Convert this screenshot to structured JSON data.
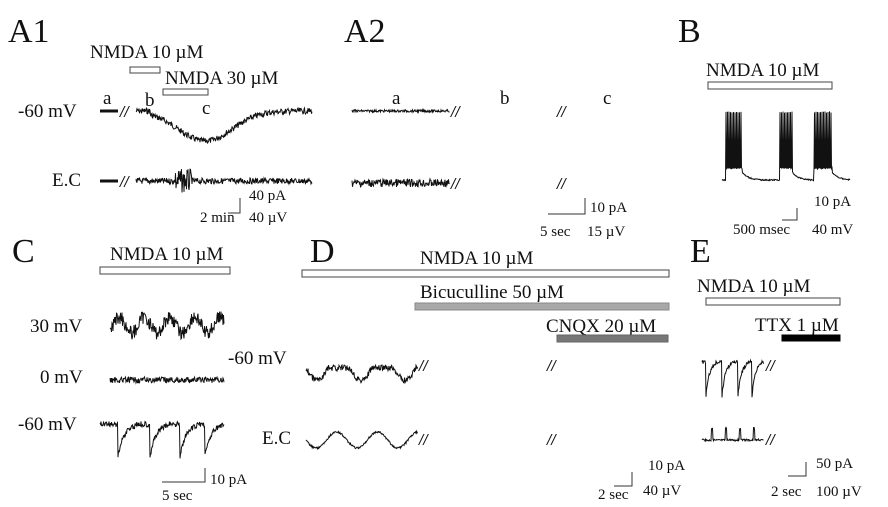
{
  "panels": {
    "A1": {
      "label": "A1",
      "bar1": "NMDA 10 µM",
      "bar2": "NMDA 30 µM",
      "hold": "-60 mV",
      "marks": [
        "a",
        "b",
        "c"
      ],
      "ec": "E.C",
      "scale_amp1": "40 pA",
      "scale_amp2": "40 µV",
      "scale_time": "2 min"
    },
    "A2": {
      "label": "A2",
      "marks": [
        "a",
        "b",
        "c"
      ],
      "scale_amp1": "10 pA",
      "scale_amp2": "15 µV",
      "scale_time": "5 sec"
    },
    "B": {
      "label": "B",
      "bar": "NMDA 10 µM",
      "scale_amp1": "10 pA",
      "scale_amp2": "40 mV",
      "scale_time": "500 msec"
    },
    "C": {
      "label": "C",
      "bar": "NMDA 10 µM",
      "v1": "30 mV",
      "v2": "0 mV",
      "v3": "-60 mV",
      "scale_amp": "10 pA",
      "scale_time": "5 sec"
    },
    "D": {
      "label": "D",
      "bar1": "NMDA 10 µM",
      "bar2": "Bicuculline 50 µM",
      "bar3": "CNQX 20 µM",
      "hold": "-60 mV",
      "ec": "E.C",
      "scale_amp1": "10 pA",
      "scale_amp2": "40 µV",
      "scale_time": "2 sec"
    },
    "E": {
      "label": "E",
      "bar1": "NMDA 10 µM",
      "bar2": "TTX 1 µM",
      "scale_amp1": "50 pA",
      "scale_amp2": "100 µV",
      "scale_time": "2 sec"
    }
  }
}
